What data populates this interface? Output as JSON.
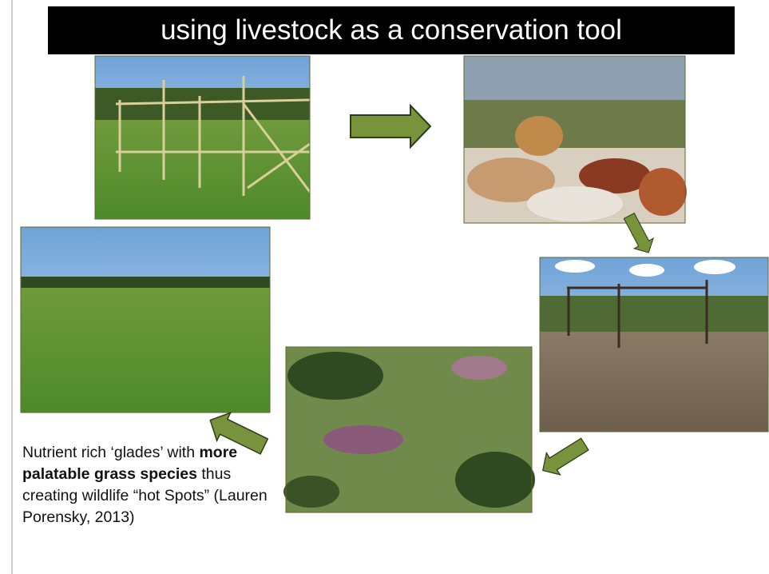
{
  "header": {
    "title": "using livestock as a conservation tool"
  },
  "caption": {
    "parts": [
      "Nutrient rich ‘glades’ with ",
      "more palatable grass species",
      " thus creating wildlife “hot Spots” (Lauren Porensky, 2013)"
    ]
  }
}
